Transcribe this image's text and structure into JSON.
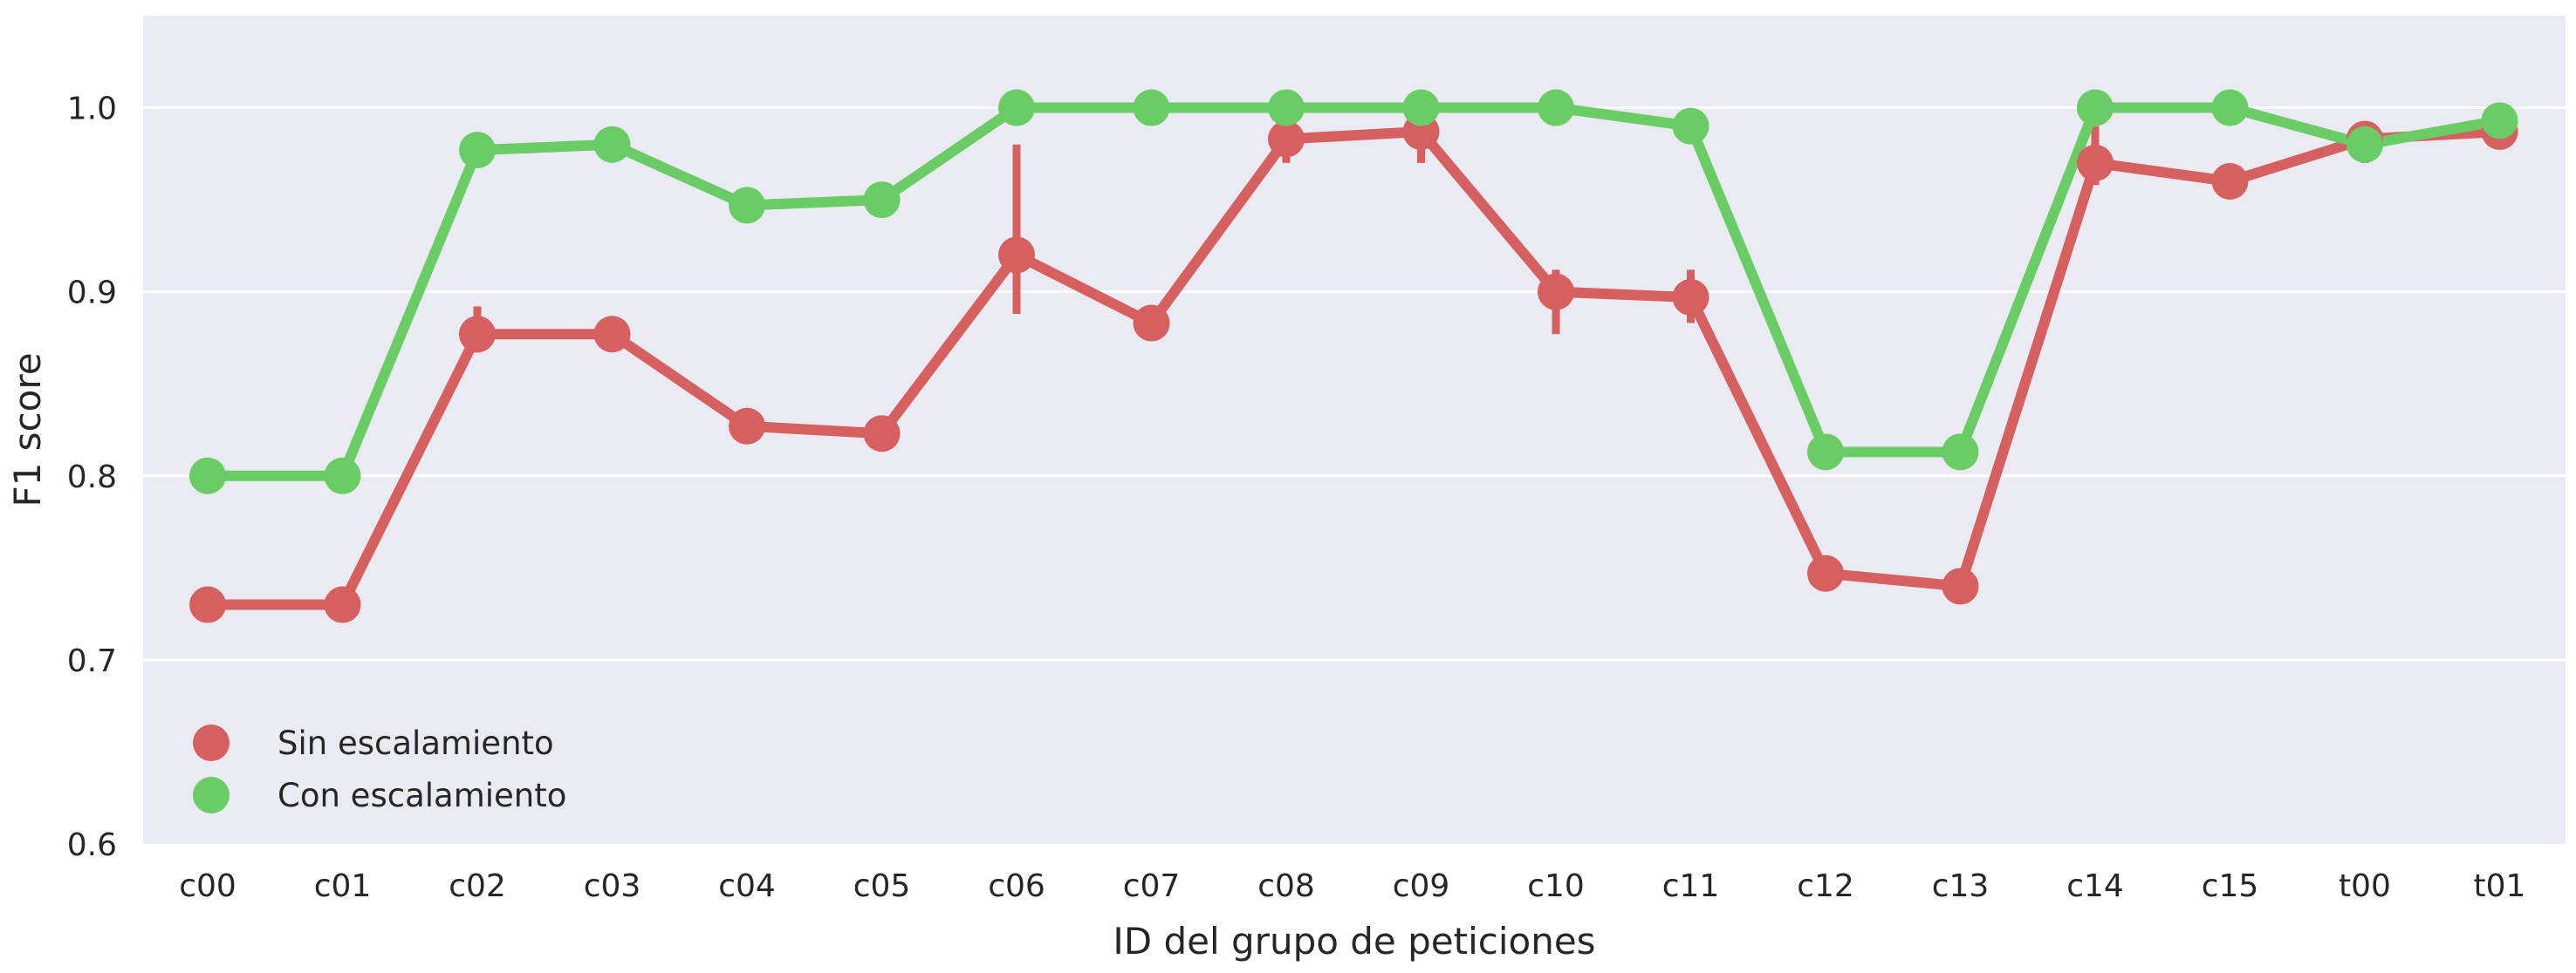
{
  "chart_data": {
    "type": "line",
    "xlabel": "ID del grupo de peticiones",
    "ylabel": "F1 score",
    "ylim": [
      0.6,
      1.05
    ],
    "yticks": [
      "0.6",
      "0.7",
      "0.8",
      "0.9",
      "1.0"
    ],
    "grid": true,
    "legend_position": "lower-left",
    "categories": [
      "c00",
      "c01",
      "c02",
      "c03",
      "c04",
      "c05",
      "c06",
      "c07",
      "c08",
      "c09",
      "c10",
      "c11",
      "c12",
      "c13",
      "c14",
      "c15",
      "t00",
      "t01"
    ],
    "series": [
      {
        "name": "Sin escalamiento",
        "color": "#d65f5f",
        "values": [
          0.73,
          0.73,
          0.877,
          0.877,
          0.827,
          0.823,
          0.92,
          0.883,
          0.983,
          0.987,
          0.9,
          0.897,
          0.747,
          0.74,
          0.97,
          0.96,
          0.983,
          0.987
        ],
        "error_low": [
          0.73,
          0.73,
          0.867,
          0.877,
          0.827,
          0.823,
          0.888,
          0.883,
          0.97,
          0.97,
          0.877,
          0.883,
          0.747,
          0.74,
          0.958,
          0.96,
          0.97,
          0.983
        ],
        "error_high": [
          0.73,
          0.73,
          0.892,
          0.877,
          0.827,
          0.823,
          0.98,
          0.883,
          0.99,
          0.995,
          0.912,
          0.912,
          0.747,
          0.74,
          0.99,
          0.96,
          0.99,
          0.99
        ]
      },
      {
        "name": "Con escalamiento",
        "color": "#6acc65",
        "values": [
          0.8,
          0.8,
          0.977,
          0.98,
          0.947,
          0.95,
          1.0,
          1.0,
          1.0,
          1.0,
          1.0,
          0.99,
          0.813,
          0.813,
          1.0,
          1.0,
          0.98,
          0.993
        ],
        "error_low": [
          0.8,
          0.8,
          0.977,
          0.98,
          0.947,
          0.95,
          1.0,
          1.0,
          1.0,
          1.0,
          1.0,
          0.99,
          0.813,
          0.813,
          1.0,
          1.0,
          0.98,
          0.993
        ],
        "error_high": [
          0.8,
          0.8,
          0.977,
          0.98,
          0.947,
          0.95,
          1.0,
          1.0,
          1.0,
          1.0,
          1.0,
          0.99,
          0.813,
          0.813,
          1.0,
          1.0,
          0.98,
          0.993
        ]
      }
    ]
  }
}
